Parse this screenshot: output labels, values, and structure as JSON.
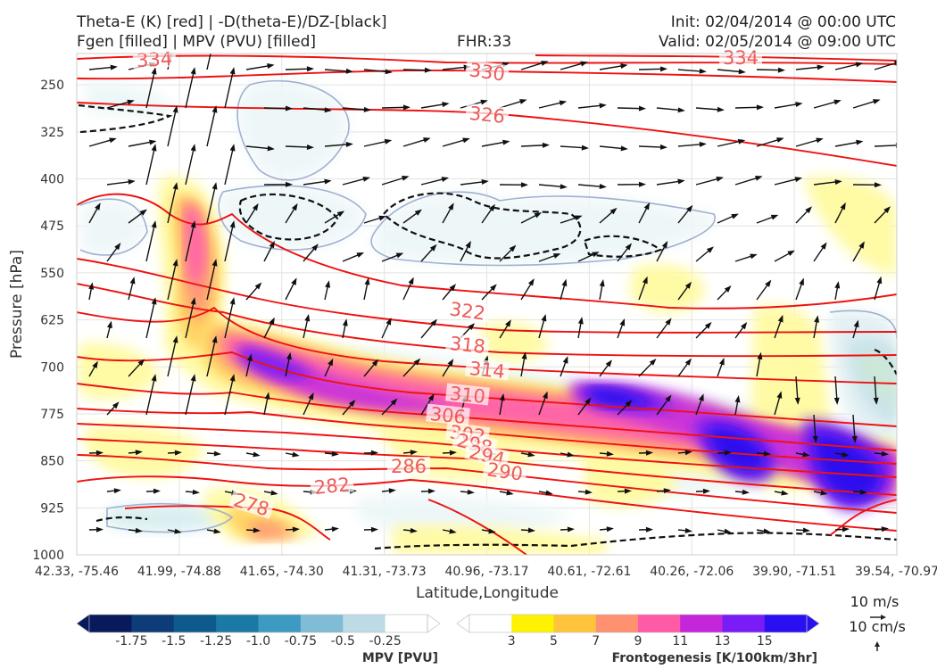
{
  "header": {
    "line1_left": "Theta-E (K) [red] | -D(theta-E)/DZ-[black]",
    "line2_left": "Fgen [filled] | MPV (PVU) [filled]",
    "fhr": "FHR:33",
    "init": "Init: 02/04/2014 @ 00:00 UTC",
    "valid": "Valid: 02/05/2014 @ 09:00 UTC"
  },
  "chart_data": {
    "type": "cross-section",
    "xlabel": "Latitude,Longitude",
    "ylabel": "Pressure [hPa]",
    "ylim": [
      1000,
      200
    ],
    "yticks": [
      250,
      325,
      400,
      475,
      550,
      625,
      700,
      775,
      850,
      925,
      1000
    ],
    "xticks": [
      "42.33, -75.46",
      "41.99, -74.88",
      "41.65, -74.30",
      "41.31, -73.73",
      "40.96, -73.17",
      "40.61, -72.61",
      "40.26, -72.06",
      "39.90, -71.51",
      "39.54, -70.97"
    ],
    "theta_e_labels": [
      "334",
      "330",
      "326",
      "334",
      "322",
      "318",
      "314",
      "310",
      "306",
      "302",
      "298",
      "294",
      "290",
      "286",
      "282",
      "278"
    ],
    "colorbars": [
      {
        "title": "MPV [PVU]",
        "ticks": [
          "-1.75",
          "-1.5",
          "-1.25",
          "-1.0",
          "-0.75",
          "-0.5",
          "-0.25"
        ],
        "colors": [
          "#08195c",
          "#0d3c78",
          "#0f5a8d",
          "#1a7aa5",
          "#3d9bc2",
          "#80bcd6",
          "#bcdbe6",
          "#ffffff"
        ]
      },
      {
        "title": "Frontogenesis [K/100km/3hr]",
        "ticks": [
          "3",
          "5",
          "7",
          "9",
          "11",
          "13",
          "15"
        ],
        "colors": [
          "#ffffff",
          "#fff200",
          "#ffc43c",
          "#ff9070",
          "#ff5aa5",
          "#c426d9",
          "#7a1cf5",
          "#2a10f0"
        ]
      }
    ],
    "wind_key": [
      "10 m/s",
      "10 cm/s"
    ],
    "grid": true
  }
}
